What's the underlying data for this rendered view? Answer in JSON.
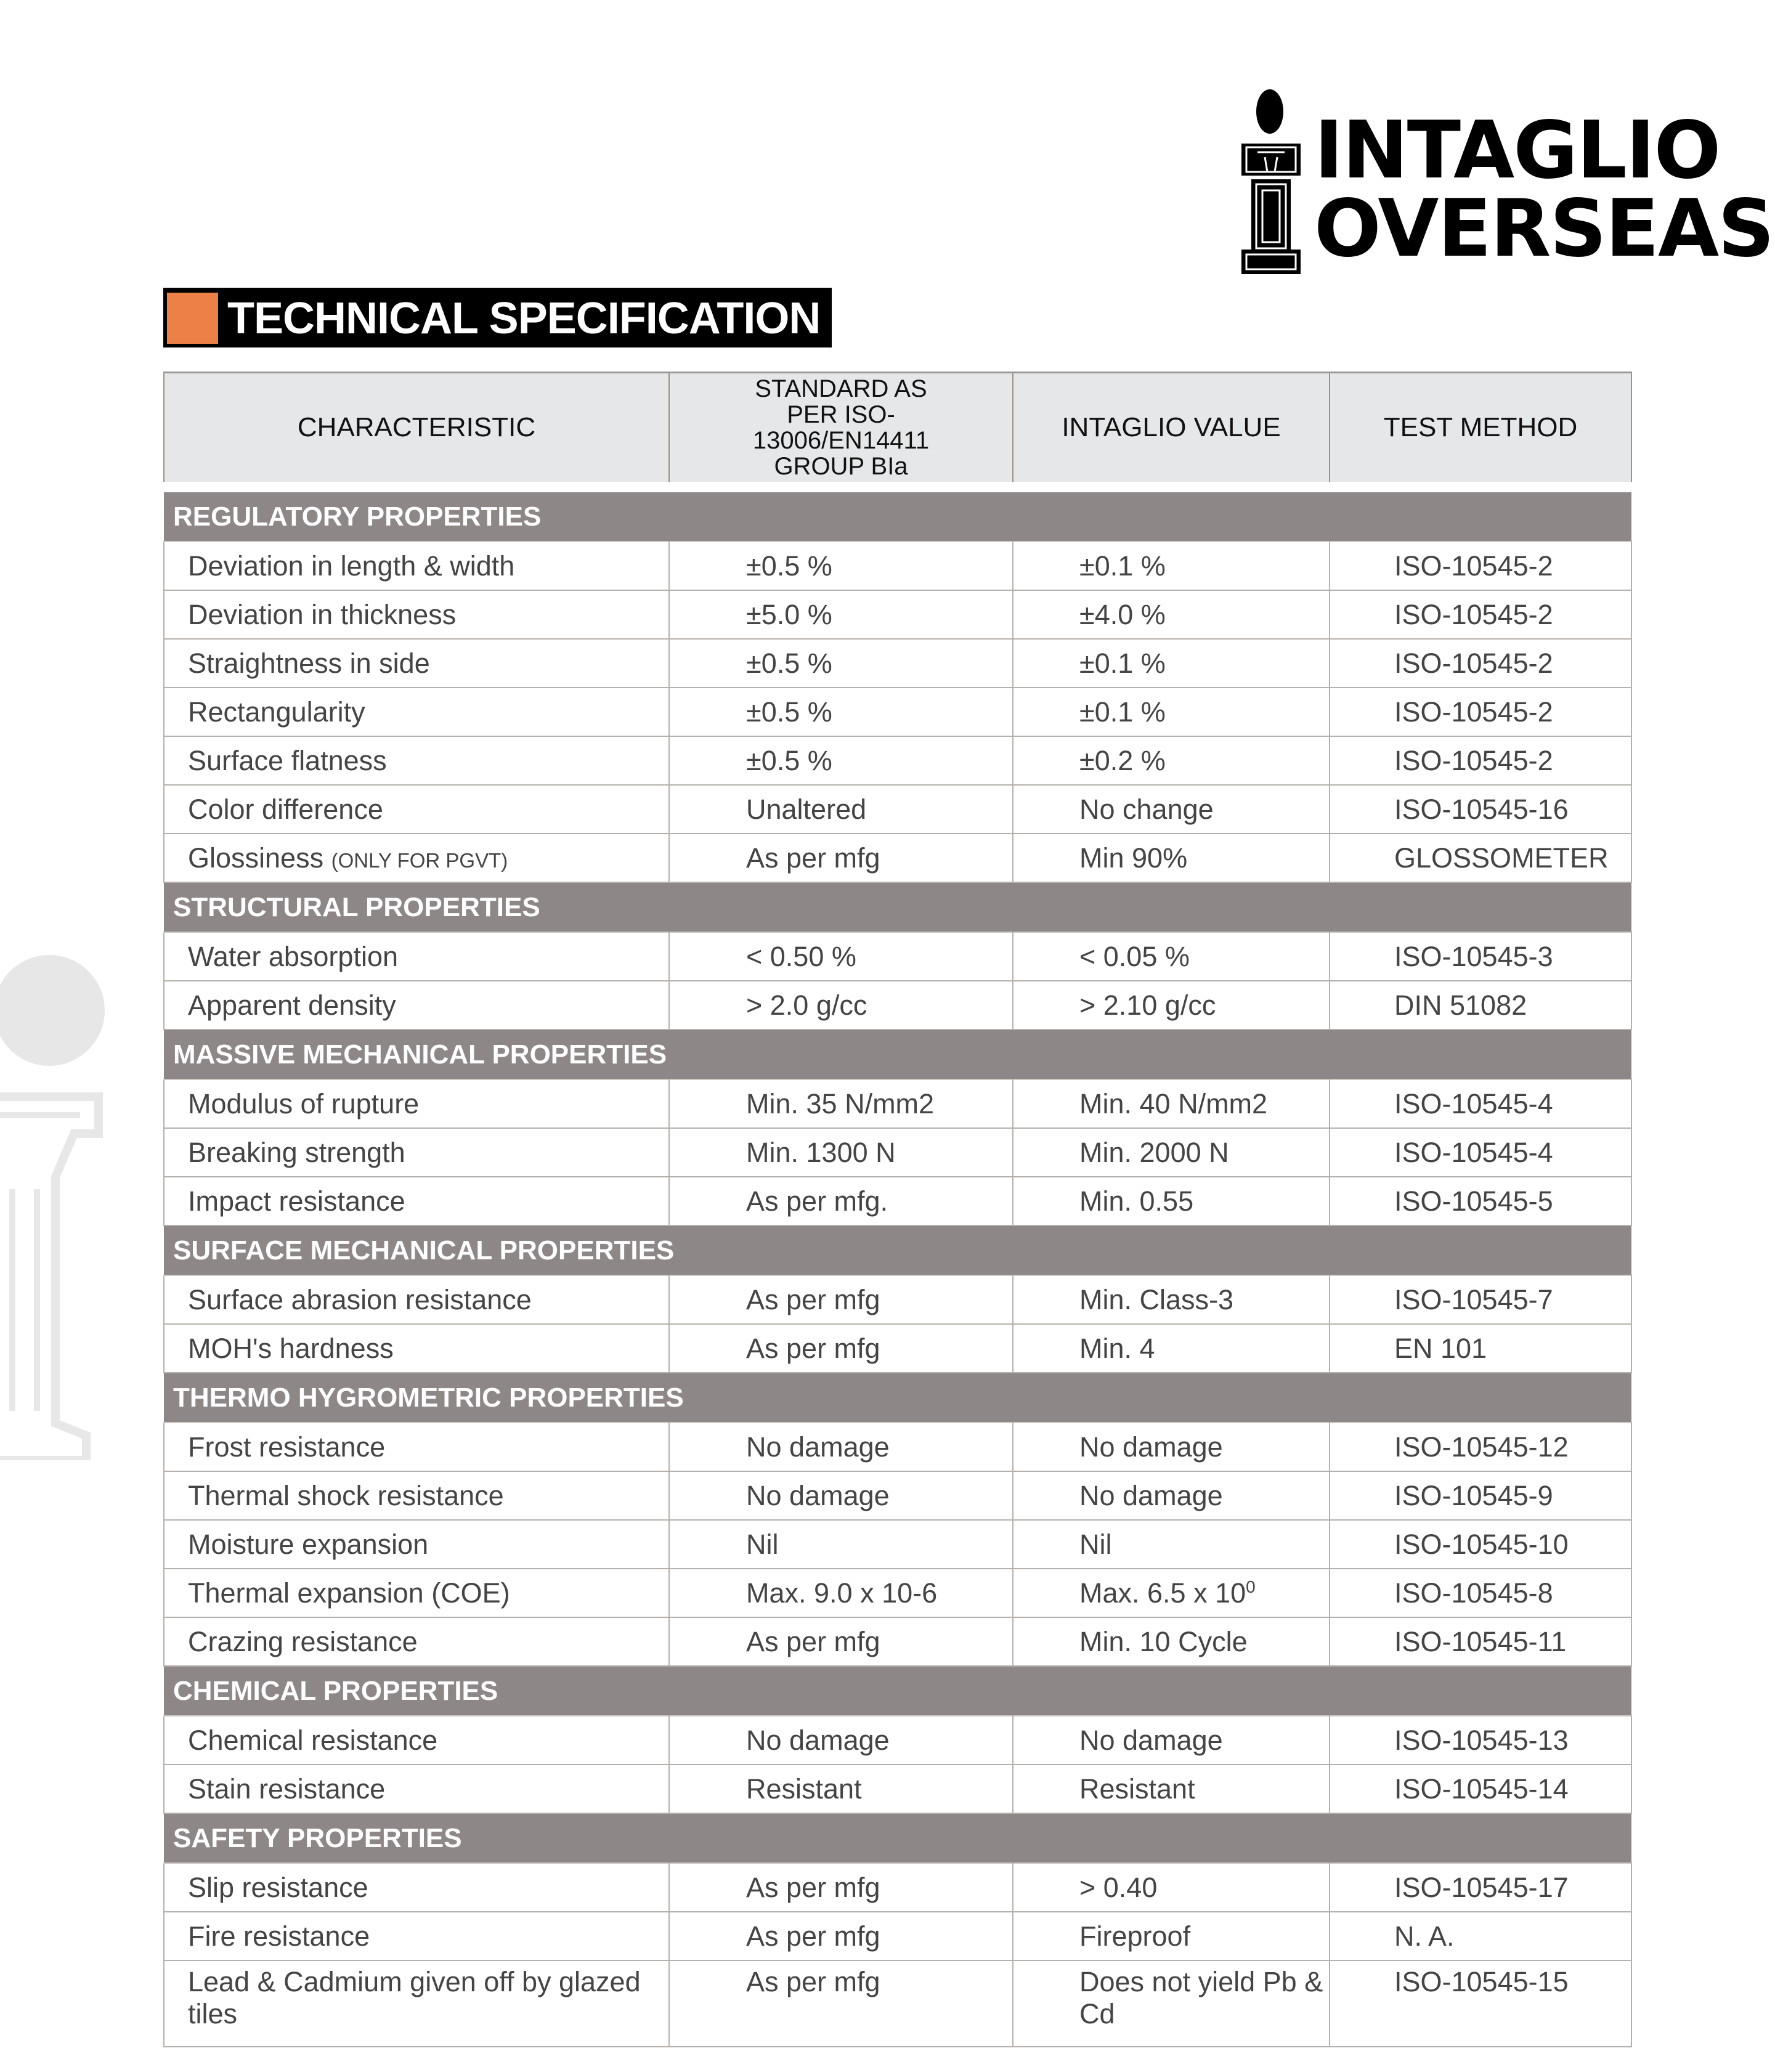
{
  "brand": {
    "line1": "INTAGLIO",
    "line2": "OVERSEAS"
  },
  "title": "TECHNICAL SPECIFICATION",
  "colors": {
    "accent": "#ec8148",
    "group_bg": "#8e8788",
    "header_bg": "#e6e7e9"
  },
  "headers": [
    "CHARACTERISTIC",
    "STANDARD AS PER ISO-13006/EN14411 GROUP BIa",
    "INTAGLIO VALUE",
    "TEST METHOD"
  ],
  "groups": [
    {
      "name": "REGULATORY PROPERTIES",
      "rows": [
        {
          "c": "Deviation in length & width",
          "s": "±0.5 %",
          "v": "±0.1 %",
          "t": "ISO-10545-2"
        },
        {
          "c": "Deviation in thickness",
          "s": "±5.0 %",
          "v": "±4.0 %",
          "t": "ISO-10545-2"
        },
        {
          "c": "Straightness in side",
          "s": "±0.5 %",
          "v": "±0.1 %",
          "t": "ISO-10545-2"
        },
        {
          "c": "Rectangularity",
          "s": "±0.5 %",
          "v": "±0.1 %",
          "t": "ISO-10545-2"
        },
        {
          "c": "Surface flatness",
          "s": "±0.5 %",
          "v": "±0.2 %",
          "t": "ISO-10545-2"
        },
        {
          "c": "Color difference",
          "s": "Unaltered",
          "v": "No change",
          "t": "ISO-10545-16"
        },
        {
          "c": "Glossiness",
          "c_note": "(ONLY FOR PGVT)",
          "s": "As per mfg",
          "v": "Min 90%",
          "t": "GLOSSOMETER"
        }
      ]
    },
    {
      "name": "STRUCTURAL PROPERTIES",
      "rows": [
        {
          "c": "Water absorption",
          "s": "< 0.50 %",
          "v": "< 0.05 %",
          "t": "ISO-10545-3"
        },
        {
          "c": "Apparent density",
          "s": "> 2.0 g/cc",
          "v": "> 2.10 g/cc",
          "t": "DIN 51082"
        }
      ]
    },
    {
      "name": "MASSIVE MECHANICAL  PROPERTIES",
      "rows": [
        {
          "c": "Modulus of rupture",
          "s": "Min. 35 N/mm2",
          "v": "Min. 40 N/mm2",
          "t": "ISO-10545-4"
        },
        {
          "c": "Breaking strength",
          "s": "Min. 1300 N",
          "v": "Min. 2000 N",
          "t": "ISO-10545-4"
        },
        {
          "c": "Impact resistance",
          "s": "As per mfg.",
          "v": "Min. 0.55",
          "t": "ISO-10545-5"
        }
      ]
    },
    {
      "name": "SURFACE  MECHANICAL  PROPERTIES",
      "rows": [
        {
          "c": "Surface abrasion resistance",
          "s": "As per mfg",
          "v": "Min. Class-3",
          "t": "ISO-10545-7"
        },
        {
          "c": "MOH's hardness",
          "s": "As per mfg",
          "v": "Min. 4",
          "t": "EN 101"
        }
      ]
    },
    {
      "name": "THERMO HYGROMETRIC  PROPERTIES",
      "rows": [
        {
          "c": "Frost resistance",
          "s": "No damage",
          "v": "No damage",
          "t": "ISO-10545-12"
        },
        {
          "c": "Thermal shock resistance",
          "s": "No damage",
          "v": "No damage",
          "t": "ISO-10545-9"
        },
        {
          "c": "Moisture expansion",
          "s": "Nil",
          "v": "Nil",
          "t": "ISO-10545-10"
        },
        {
          "c": "Thermal expansion (COE)",
          "s": "Max. 9.0 x 10-6",
          "v": "Max. 6.5 x 10",
          "v_sup": "0",
          "t": "ISO-10545-8"
        },
        {
          "c": "Crazing resistance",
          "s": "As per mfg",
          "v": "Min. 10 Cycle",
          "t": "ISO-10545-11"
        }
      ]
    },
    {
      "name": "CHEMICAL PROPERTIES",
      "rows": [
        {
          "c": "Chemical resistance",
          "s": "No damage",
          "v": "No damage",
          "t": "ISO-10545-13"
        },
        {
          "c": "Stain resistance",
          "s": "Resistant",
          "v": "Resistant",
          "t": "ISO-10545-14"
        }
      ]
    },
    {
      "name": "SAFETY PROPERTIES",
      "rows": [
        {
          "c": "Slip resistance",
          "s": "As per mfg",
          "v": "> 0.40",
          "t": "ISO-10545-17"
        },
        {
          "c": "Fire resistance",
          "s": "As per mfg",
          "v": "Fireproof",
          "t": "N. A."
        },
        {
          "c": "Lead & Cadmium given off by glazed tiles",
          "s": "As per mfg",
          "v": "Does not yield Pb & Cd",
          "t": "ISO-10545-15",
          "tall": true
        }
      ]
    }
  ]
}
